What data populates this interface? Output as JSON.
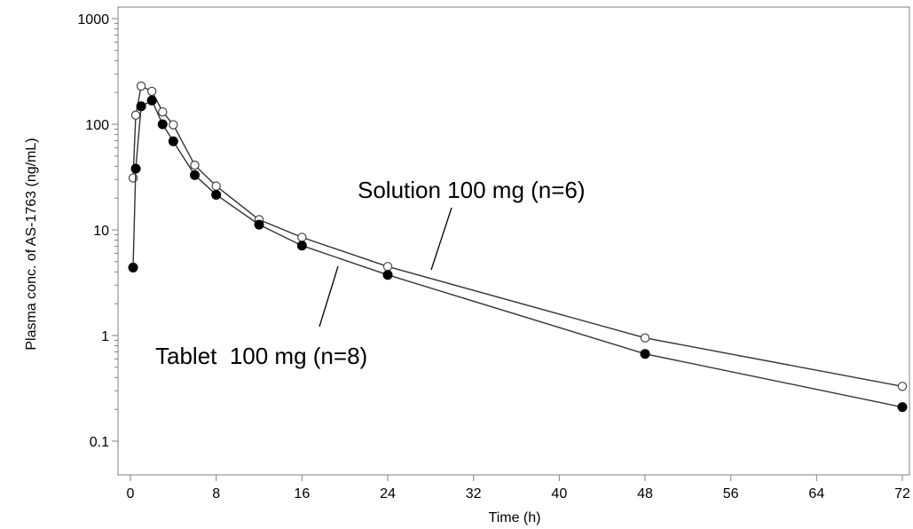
{
  "chart_data": {
    "type": "line",
    "xlabel": "Time (h)",
    "ylabel": "Plasma conc. of AS-1763 (ng/mL)",
    "xlim": [
      0,
      72
    ],
    "ylim": [
      0.1,
      1000
    ],
    "yscale": "log",
    "x_ticks": [
      0,
      8,
      16,
      24,
      32,
      40,
      48,
      56,
      64,
      72
    ],
    "y_ticks": [
      0.1,
      1,
      10,
      100,
      1000
    ],
    "y_tick_labels": [
      "0.1",
      "1",
      "10",
      "100",
      "1000"
    ],
    "grid": false,
    "series": [
      {
        "name": "Solution 100 mg (n=6)",
        "marker": "open-circle",
        "x": [
          0.25,
          0.5,
          1,
          2,
          3,
          4,
          6,
          8,
          12,
          16,
          24,
          48,
          72
        ],
        "values": [
          31,
          122,
          230,
          205,
          131,
          99,
          41,
          26,
          12.5,
          8.5,
          4.5,
          0.95,
          0.33
        ]
      },
      {
        "name": "Tablet  100 mg (n=8)",
        "marker": "filled-circle",
        "x": [
          0.25,
          0.5,
          1,
          2,
          3,
          4,
          6,
          8,
          12,
          16,
          24,
          48,
          72
        ],
        "values": [
          4.4,
          38,
          148,
          168,
          100,
          69,
          33,
          21.5,
          11.2,
          7.1,
          3.75,
          0.67,
          0.21
        ]
      }
    ],
    "annotations": [
      {
        "text": "Solution 100 mg (n=6)",
        "series": 0
      },
      {
        "text": "Tablet  100 mg (n=8)",
        "series": 1
      }
    ]
  }
}
